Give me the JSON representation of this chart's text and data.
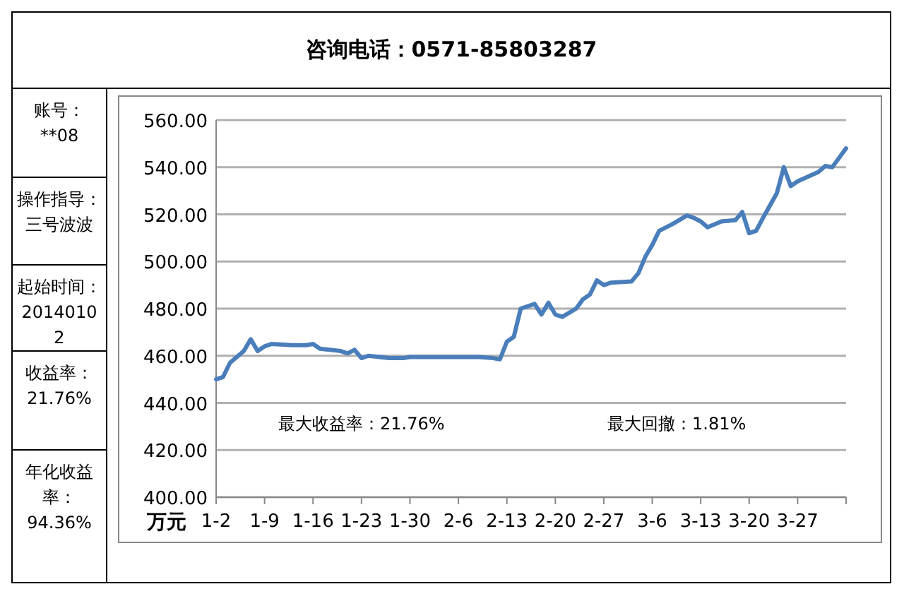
{
  "chart_data": {
    "type": "line",
    "ylabel": "万元",
    "annotations": [
      "咨询电话：0571-85803287",
      "账号：**08",
      "操作指导：三号波波",
      "起始时间：20140102",
      "收益率：21.76%",
      "年化收益率：94.36%",
      "最大收益率：21.76%",
      "最大回撤：1.81%"
    ],
    "x": [
      "2014-01-02",
      "2014-01-03",
      "2014-01-04",
      "2014-01-06",
      "2014-01-07",
      "2014-01-08",
      "2014-01-09",
      "2014-01-10",
      "2014-01-13",
      "2014-01-15",
      "2014-01-16",
      "2014-01-17",
      "2014-01-20",
      "2014-01-21",
      "2014-01-22",
      "2014-01-23",
      "2014-01-24",
      "2014-01-27",
      "2014-01-29",
      "2014-01-30",
      "2014-02-09",
      "2014-02-11",
      "2014-02-12",
      "2014-02-13",
      "2014-02-14",
      "2014-02-15",
      "2014-02-17",
      "2014-02-18",
      "2014-02-19",
      "2014-02-20",
      "2014-02-21",
      "2014-02-23",
      "2014-02-24",
      "2014-02-25",
      "2014-02-26",
      "2014-02-27",
      "2014-02-28",
      "2014-03-03",
      "2014-03-04",
      "2014-03-05",
      "2014-03-06",
      "2014-03-07",
      "2014-03-09",
      "2014-03-11",
      "2014-03-12",
      "2014-03-13",
      "2014-03-14",
      "2014-03-16",
      "2014-03-18",
      "2014-03-19",
      "2014-03-20",
      "2014-03-21",
      "2014-03-22",
      "2014-03-24",
      "2014-03-25",
      "2014-03-26",
      "2014-03-27",
      "2014-03-30",
      "2014-03-31",
      "2014-04-01",
      "2014-04-03"
    ],
    "series": [
      {
        "color": "#4a7ebb",
        "values": [
          450,
          451,
          457,
          462,
          467,
          462,
          464,
          465,
          464.5,
          464.5,
          465,
          463,
          462,
          461,
          462.5,
          459,
          460,
          459,
          459,
          459.5,
          459.5,
          459,
          458.5,
          466,
          468,
          480,
          482,
          477.5,
          482.5,
          477.5,
          476.5,
          480,
          484,
          486,
          492,
          490,
          491,
          491.5,
          495,
          502,
          507,
          513,
          516,
          519.5,
          518.5,
          517,
          514.5,
          517,
          517.5,
          521,
          512,
          513,
          518.5,
          529,
          540,
          532,
          534,
          538,
          540.5,
          540,
          548
        ]
      }
    ],
    "xlim": [
      "2014-01-02",
      "2014-04-03"
    ],
    "xticks": [
      {
        "value": "2014-01-02",
        "label": "1-2"
      },
      {
        "value": "2014-01-09",
        "label": "1-9"
      },
      {
        "value": "2014-01-16",
        "label": "1-16"
      },
      {
        "value": "2014-01-23",
        "label": "1-23"
      },
      {
        "value": "2014-01-30",
        "label": "1-30"
      },
      {
        "value": "2014-02-06",
        "label": "2-6"
      },
      {
        "value": "2014-02-13",
        "label": "2-13"
      },
      {
        "value": "2014-02-20",
        "label": "2-20"
      },
      {
        "value": "2014-02-27",
        "label": "2-27"
      },
      {
        "value": "2014-03-06",
        "label": "3-6"
      },
      {
        "value": "2014-03-13",
        "label": "3-13"
      },
      {
        "value": "2014-03-20",
        "label": "3-20"
      },
      {
        "value": "2014-03-27",
        "label": "3-27"
      },
      {
        "value": "2014-04-03",
        "label": null
      }
    ],
    "ylim": [
      400,
      560
    ],
    "yticks": [
      {
        "value": 400,
        "label": "400.00"
      },
      {
        "value": 420,
        "label": "420.00"
      },
      {
        "value": 440,
        "label": "440.00"
      },
      {
        "value": 460,
        "label": "460.00"
      },
      {
        "value": 480,
        "label": "480.00"
      },
      {
        "value": 500,
        "label": "500.00"
      },
      {
        "value": 520,
        "label": "520.00"
      },
      {
        "value": 540,
        "label": "540.00"
      },
      {
        "value": 560,
        "label": "560.00"
      }
    ],
    "grid": "y",
    "marker": "none",
    "line_style": "solid"
  }
}
